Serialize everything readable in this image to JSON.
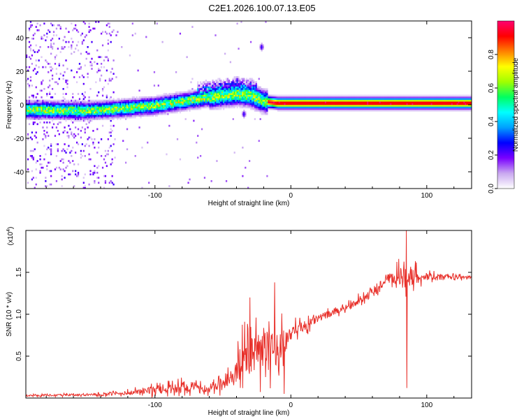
{
  "title": "C2E1.2026.100.07.13.E05",
  "chart_data": [
    {
      "type": "heatmap",
      "name": "spectrogram",
      "xlabel": "Height of straight line (km)",
      "ylabel": "Frequency (Hz)",
      "xlim": [
        -195,
        133
      ],
      "ylim": [
        -50,
        50
      ],
      "xticks": [
        -100,
        0,
        100
      ],
      "yticks": [
        -40,
        -20,
        0,
        20,
        40
      ],
      "colorbar": {
        "label": "Normalized spectral amplitude",
        "range": [
          0,
          1
        ],
        "ticks": [
          0.0,
          0.2,
          0.4,
          0.6,
          0.8
        ],
        "colors": [
          "#ffffff",
          "#c9a8f0",
          "#7a00ff",
          "#0000ff",
          "#00a0ff",
          "#00ffff",
          "#00ff60",
          "#a0ff00",
          "#ffff00",
          "#ff8000",
          "#ff0000",
          "#ff0070"
        ]
      },
      "ridge": [
        {
          "x": -195,
          "f": -3.5
        },
        {
          "x": -150,
          "f": -4
        },
        {
          "x": -130,
          "f": -3
        },
        {
          "x": -100,
          "f": -1
        },
        {
          "x": -80,
          "f": 1.5
        },
        {
          "x": -60,
          "f": 4
        },
        {
          "x": -40,
          "f": 6
        },
        {
          "x": -30,
          "f": 5
        },
        {
          "x": -20,
          "f": 1.5
        },
        {
          "x": -10,
          "f": 0.5
        },
        {
          "x": 0,
          "f": 0.5
        },
        {
          "x": 50,
          "f": 0.5
        },
        {
          "x": 133,
          "f": 0.5
        }
      ],
      "secondary_features": [
        {
          "x": -22,
          "f": 34
        },
        {
          "x": -40,
          "f": 14
        },
        {
          "x": -35,
          "f": -6
        }
      ]
    },
    {
      "type": "line",
      "name": "snr",
      "xlabel": "Height of straight line (km)",
      "ylabel": "SNR (10 * v/v)",
      "multiplier": "(x10",
      "multiplier_exp": "4",
      "multiplier_close": ")",
      "xlim": [
        -195,
        133
      ],
      "ylim": [
        0,
        2.0
      ],
      "xticks": [
        -100,
        0,
        100
      ],
      "yticks": [
        0.5,
        1.0,
        1.5
      ],
      "series_color": "#e8302a",
      "envelope": [
        {
          "x": -195,
          "base": 0.03,
          "amp": 0.02
        },
        {
          "x": -140,
          "base": 0.04,
          "amp": 0.03
        },
        {
          "x": -120,
          "base": 0.06,
          "amp": 0.05
        },
        {
          "x": -100,
          "base": 0.1,
          "amp": 0.1
        },
        {
          "x": -80,
          "base": 0.12,
          "amp": 0.15
        },
        {
          "x": -60,
          "base": 0.1,
          "amp": 0.08
        },
        {
          "x": -45,
          "base": 0.2,
          "amp": 0.2
        },
        {
          "x": -35,
          "base": 0.45,
          "amp": 0.5
        },
        {
          "x": -20,
          "base": 0.55,
          "amp": 0.5
        },
        {
          "x": -10,
          "base": 0.6,
          "amp": 0.45
        },
        {
          "x": 0,
          "base": 0.75,
          "amp": 0.2
        },
        {
          "x": 20,
          "base": 0.95,
          "amp": 0.1
        },
        {
          "x": 40,
          "base": 1.08,
          "amp": 0.08
        },
        {
          "x": 55,
          "base": 1.2,
          "amp": 0.1
        },
        {
          "x": 70,
          "base": 1.4,
          "amp": 0.15
        },
        {
          "x": 85,
          "base": 1.45,
          "amp": 0.3
        },
        {
          "x": 100,
          "base": 1.45,
          "amp": 0.08
        },
        {
          "x": 133,
          "base": 1.44,
          "amp": 0.03
        }
      ],
      "notable_points": [
        {
          "x": 85,
          "y": 2.0
        },
        {
          "x": 85.5,
          "y": 0.12
        },
        {
          "x": -5,
          "y": 0.05
        },
        {
          "x": -30,
          "y": 1.2
        },
        {
          "x": -12,
          "y": 1.38
        }
      ]
    }
  ]
}
